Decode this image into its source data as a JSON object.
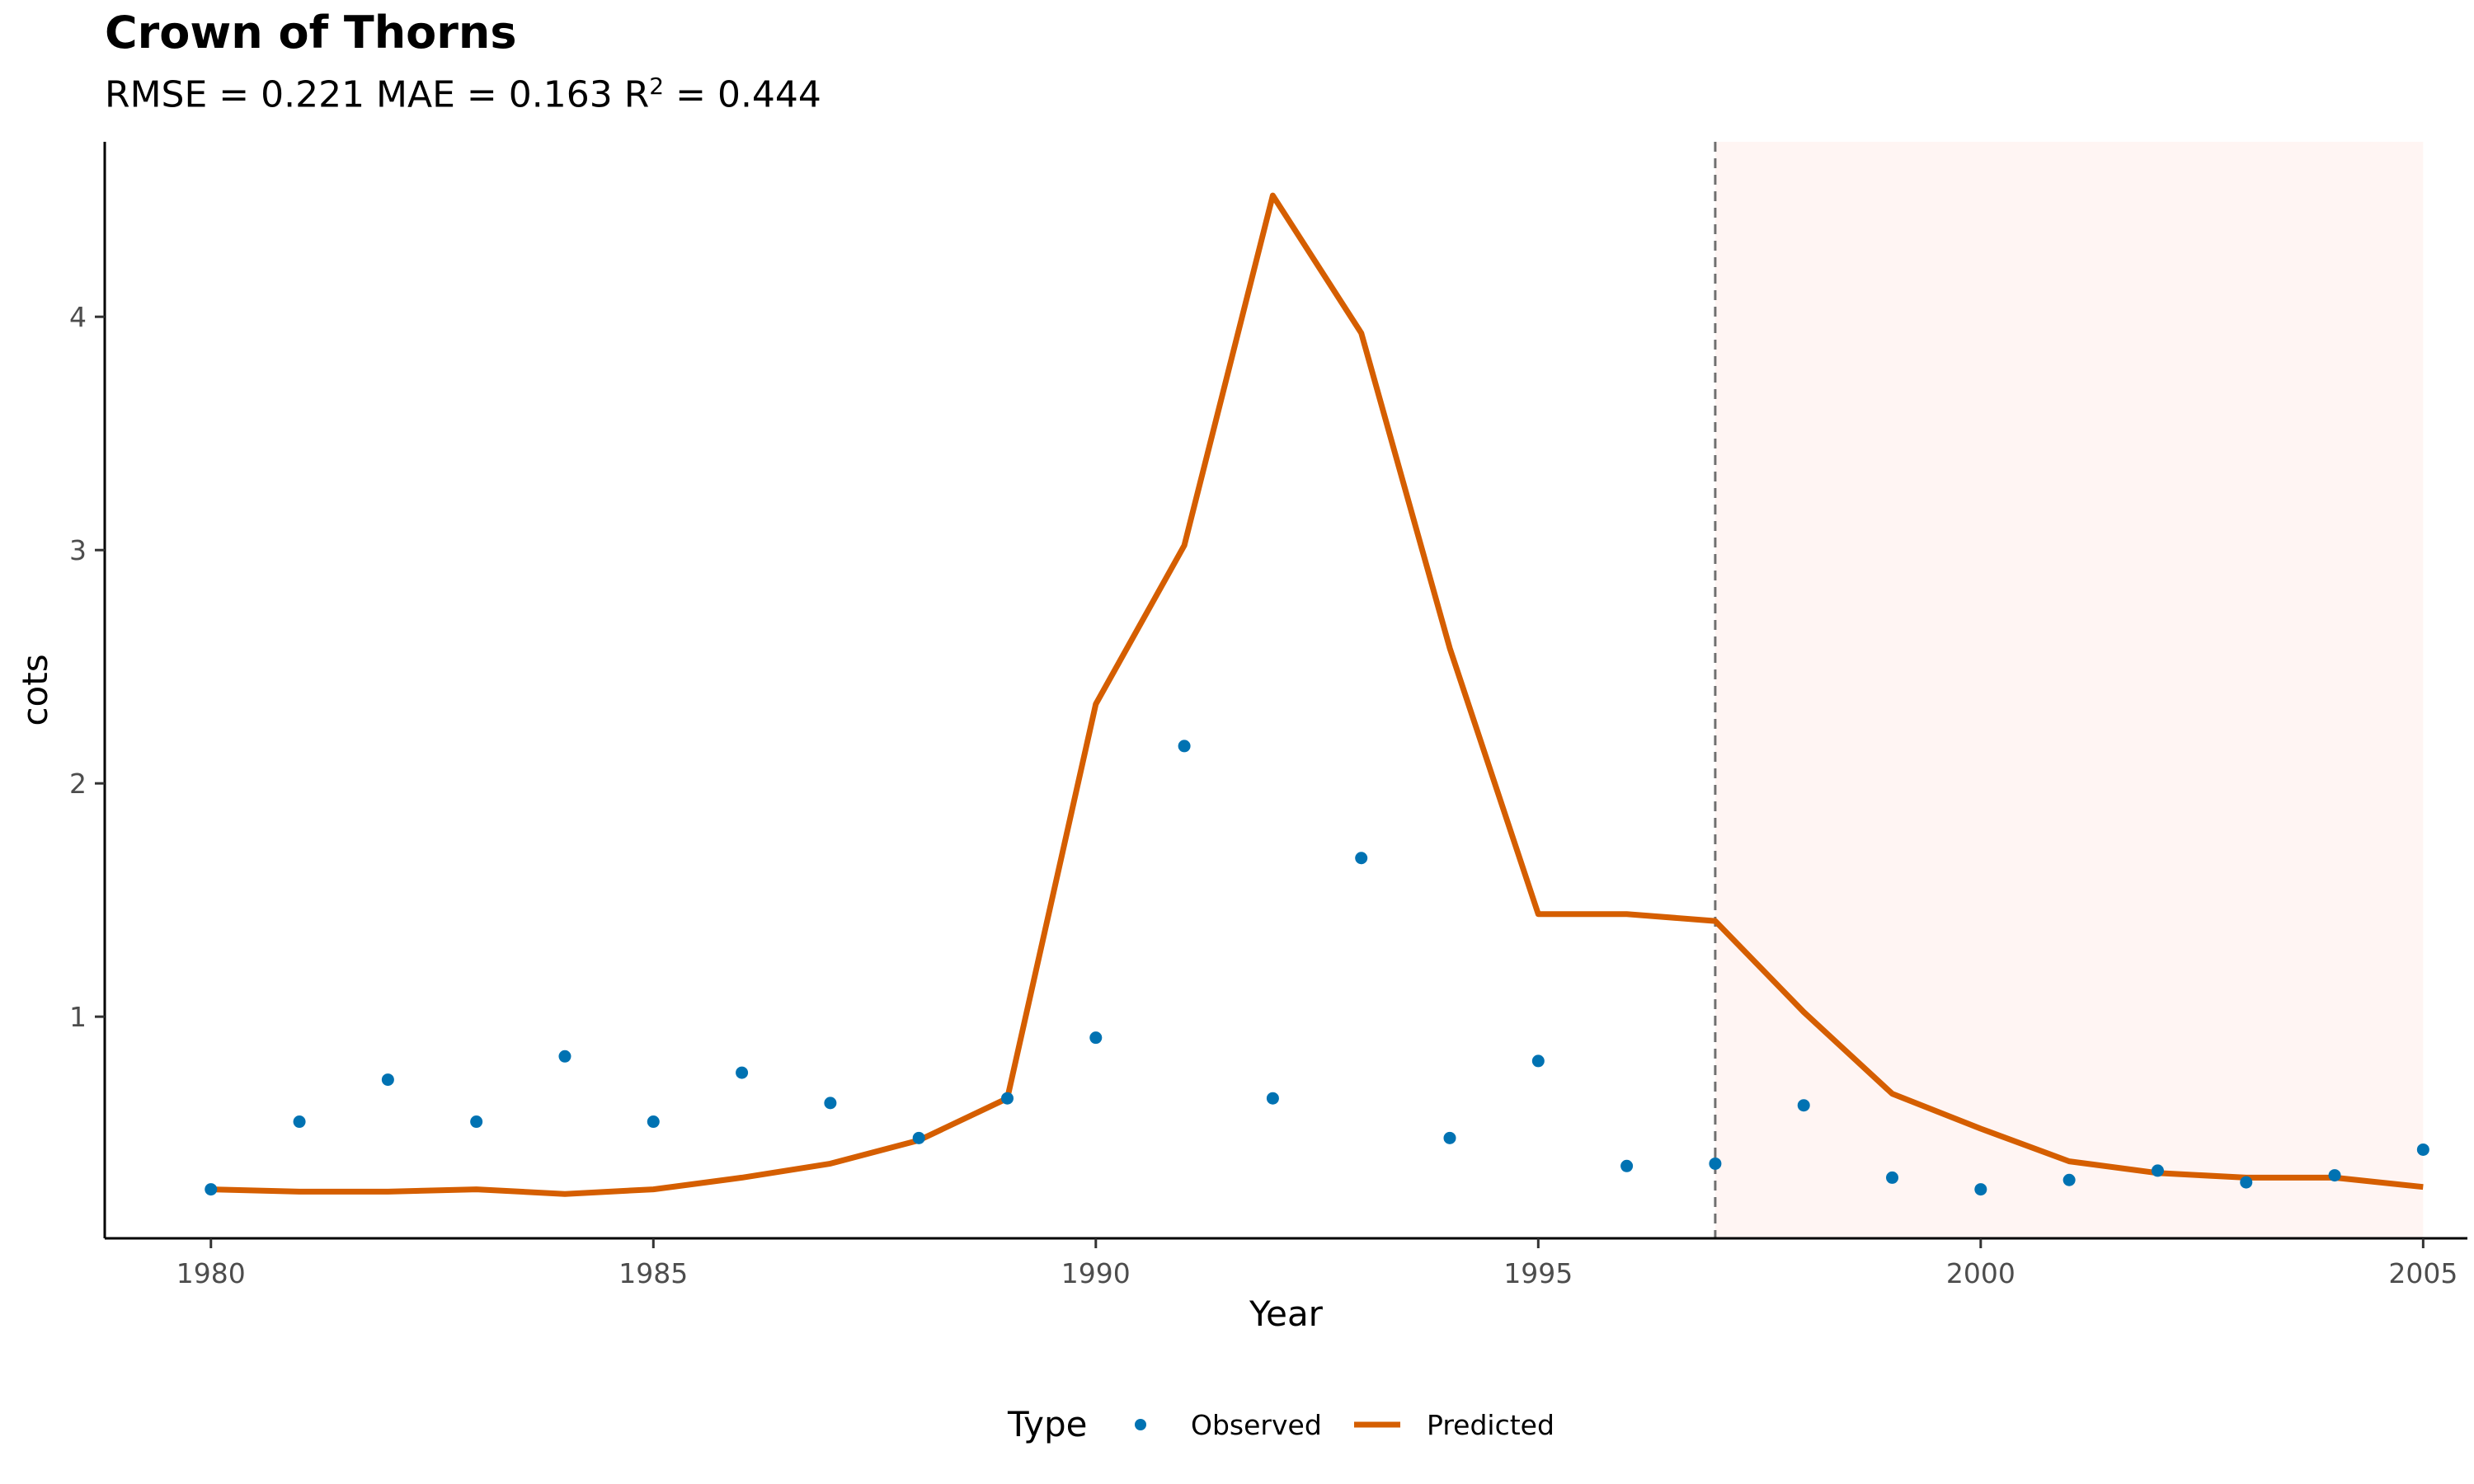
{
  "chart_data": {
    "type": "line",
    "title": "Crown of Thorns",
    "subtitle": {
      "rmse_text": "RMSE = 0.221 MAE = 0.163 R",
      "r2_superscript": "2",
      "r2_value_text": " = 0.444"
    },
    "xlabel": "Year",
    "ylabel": "cots",
    "xlim": [
      1978.8,
      2005.5
    ],
    "ylim": [
      0.05,
      4.75
    ],
    "x_ticks": [
      1980,
      1985,
      1990,
      1995,
      2000,
      2005
    ],
    "y_ticks": [
      1,
      2,
      3,
      4
    ],
    "grid": false,
    "forecast_start": 1997,
    "forecast_end": 2005,
    "forecast_region_color": "#fff5f3",
    "forecast_line_color": "#707070",
    "legend": {
      "title": "Type",
      "position": "bottom",
      "items": [
        {
          "label": "Observed",
          "kind": "point",
          "color": "#0072b2"
        },
        {
          "label": "Predicted",
          "kind": "line",
          "color": "#d55e00"
        }
      ]
    },
    "series": [
      {
        "name": "Observed",
        "kind": "point",
        "color": "#0072b2",
        "x": [
          1980,
          1981,
          1982,
          1983,
          1984,
          1985,
          1986,
          1987,
          1988,
          1989,
          1990,
          1991,
          1992,
          1993,
          1994,
          1995,
          1996,
          1997,
          1998,
          1999,
          2000,
          2001,
          2002,
          2003,
          2004,
          2005
        ],
        "y": [
          0.26,
          0.55,
          0.73,
          0.55,
          0.83,
          0.55,
          0.76,
          0.63,
          0.48,
          0.65,
          0.91,
          2.16,
          0.65,
          1.68,
          0.48,
          0.81,
          0.36,
          0.37,
          0.62,
          0.31,
          0.26,
          0.3,
          0.34,
          0.29,
          0.32,
          0.43
        ]
      },
      {
        "name": "Predicted",
        "kind": "line",
        "color": "#d55e00",
        "x": [
          1980,
          1981,
          1982,
          1983,
          1984,
          1985,
          1986,
          1987,
          1988,
          1989,
          1990,
          1991,
          1992,
          1993,
          1994,
          1995,
          1996,
          1997,
          1998,
          1999,
          2000,
          2001,
          2002,
          2003,
          2004,
          2005
        ],
        "y": [
          0.26,
          0.25,
          0.25,
          0.26,
          0.24,
          0.26,
          0.31,
          0.37,
          0.47,
          0.65,
          2.34,
          3.02,
          4.52,
          3.93,
          2.58,
          1.44,
          1.44,
          1.41,
          1.02,
          0.67,
          0.52,
          0.38,
          0.33,
          0.31,
          0.31,
          0.27
        ]
      }
    ]
  }
}
